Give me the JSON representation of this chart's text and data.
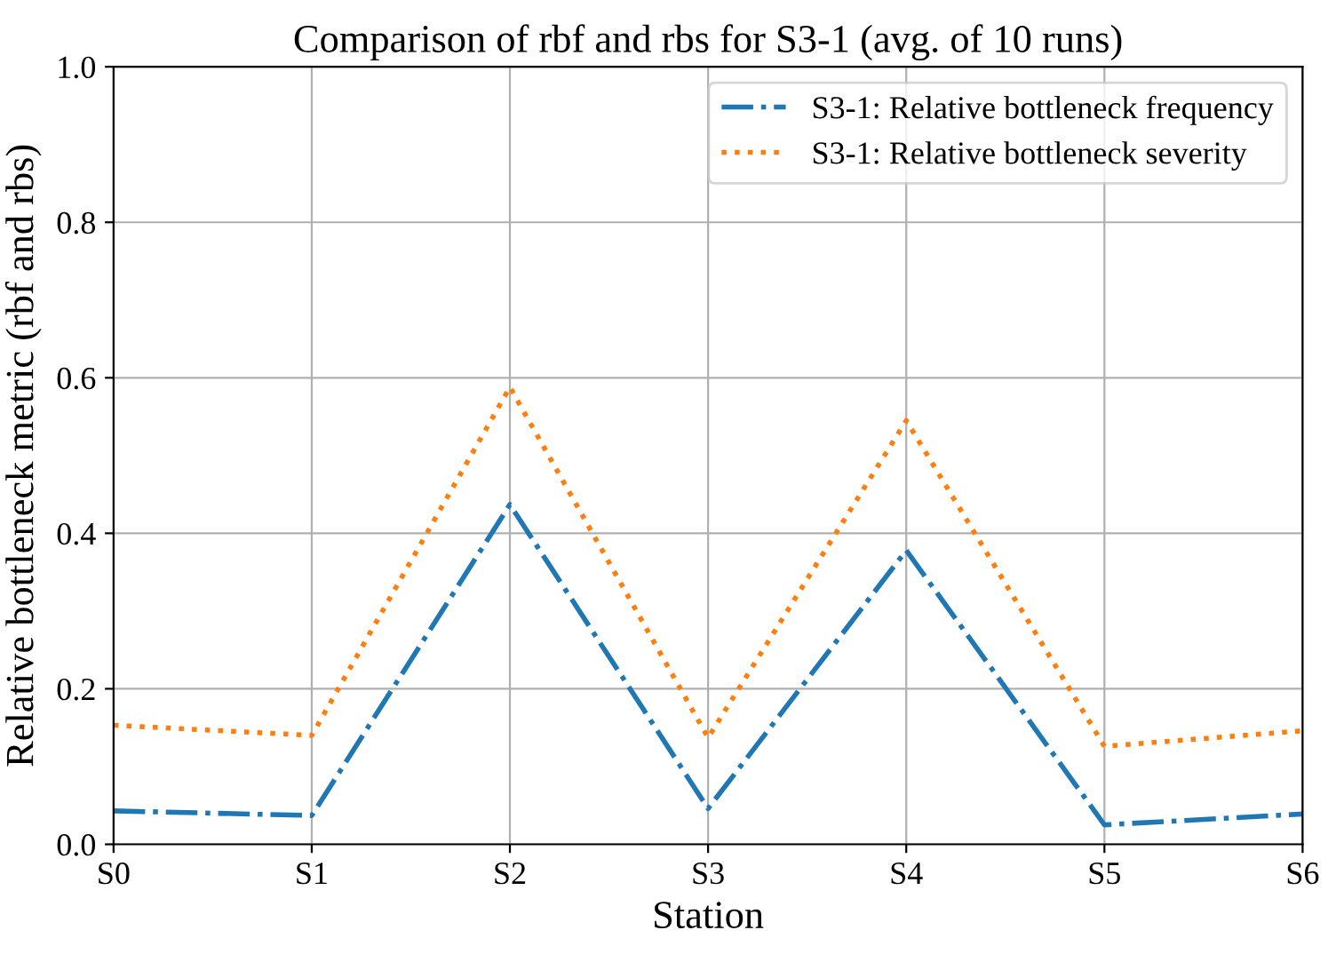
{
  "chart_data": {
    "type": "line",
    "title": "Comparison of rbf and rbs for S3-1 (avg. of 10 runs)",
    "xlabel": "Station",
    "ylabel": "Relative bottleneck metric (rbf and rbs)",
    "categories": [
      "S0",
      "S1",
      "S2",
      "S3",
      "S4",
      "S5",
      "S6"
    ],
    "series": [
      {
        "name": "S3-1: Relative bottleneck frequency",
        "color": "#1f77b4",
        "line_style": "dashdot",
        "values": [
          0.043,
          0.037,
          0.437,
          0.046,
          0.378,
          0.025,
          0.039
        ]
      },
      {
        "name": "S3-1: Relative bottleneck severity",
        "color": "#ff7f0e",
        "line_style": "dotted",
        "values": [
          0.153,
          0.14,
          0.588,
          0.137,
          0.545,
          0.126,
          0.146
        ]
      }
    ],
    "ylim": [
      0,
      1.0
    ],
    "yticks": [
      {
        "value": 0,
        "label": "0.0"
      },
      0.2,
      0.4,
      0.6,
      0.8,
      {
        "value": 1,
        "label": "1.0"
      }
    ],
    "grid": true,
    "legend": "top right",
    "marker": "none"
  }
}
